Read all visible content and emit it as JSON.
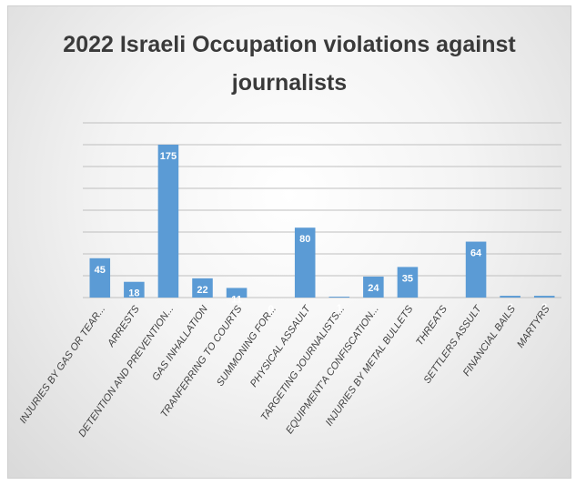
{
  "chart_data": {
    "type": "bar",
    "title_lines": [
      "2022 Israeli Occupation violations against",
      "journalists"
    ],
    "categories": [
      "INJURIES BY GAS OR TEAR...",
      "ARRESTS",
      "DETENTION AND PREVENTION...",
      "GAS INHALLATION",
      "TRANFERRING TO COURTS",
      "SUMMONING FOR...",
      "PHYSICAL ASSAULT",
      "TARGETING JOURNALISTS...",
      "EQUIPMENT'A CONFISCATION...",
      "INJURIES BY METAL BULLETS",
      "THREATS",
      "SETTLERS ASSULT",
      "FINANCIAL BAILS",
      "MARTYRS"
    ],
    "values": [
      45,
      18,
      175,
      22,
      11,
      0,
      80,
      1,
      24,
      35,
      0,
      64,
      2,
      2
    ],
    "data_labels": [
      "45",
      "18",
      "175",
      "22",
      "11",
      "0",
      "80",
      "1",
      "24",
      "35",
      "0",
      "64",
      "2",
      "2"
    ],
    "ylim": [
      0,
      200
    ],
    "grid": true,
    "bar_color": "#5b9bd5",
    "grid_color": "#bfbfbf"
  }
}
